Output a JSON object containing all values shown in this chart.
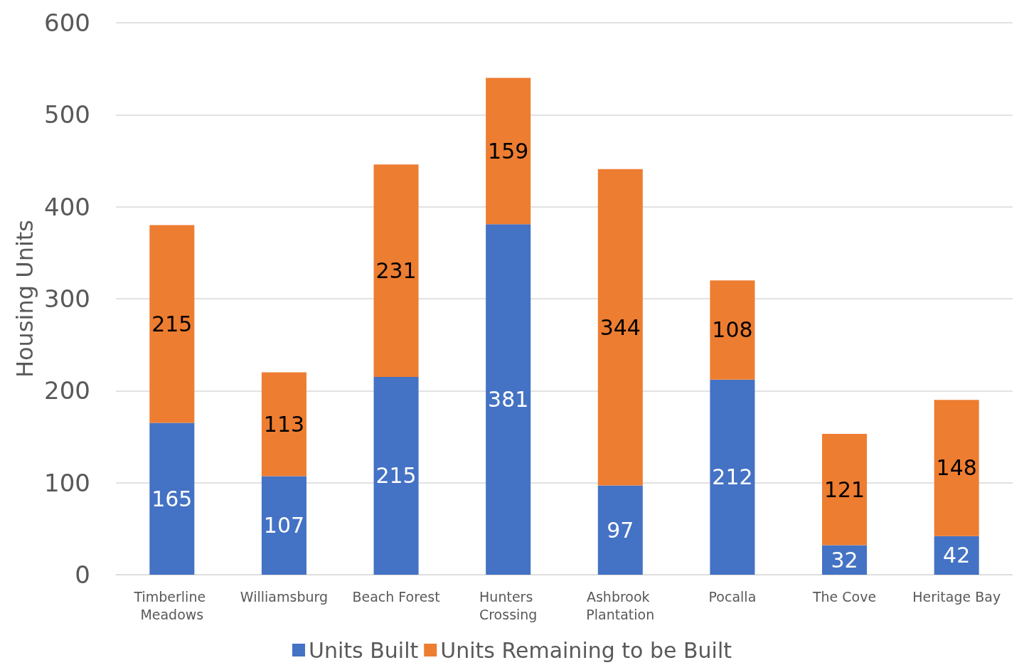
{
  "chart_data": {
    "type": "bar",
    "stacked": true,
    "ylabel": "Housing Units",
    "categories": [
      "Timberline Meadows",
      "Williamsburg",
      "Beach Forest",
      "Hunters Crossing",
      "Ashbrook Plantation",
      "Pocalla",
      "The Cove",
      "Heritage Bay"
    ],
    "series": [
      {
        "name": "Units Built",
        "color": "#4472c4",
        "values": [
          165,
          107,
          215,
          381,
          97,
          212,
          32,
          42
        ]
      },
      {
        "name": "Units Remaining to be Built",
        "color": "#ed7d31",
        "values": [
          215,
          113,
          231,
          159,
          344,
          108,
          121,
          148
        ]
      }
    ],
    "ylim": [
      0,
      600
    ],
    "yticks": [
      0,
      100,
      200,
      300,
      400,
      500,
      600
    ],
    "grid": "y",
    "legend": "bottom",
    "data_labels": true
  }
}
